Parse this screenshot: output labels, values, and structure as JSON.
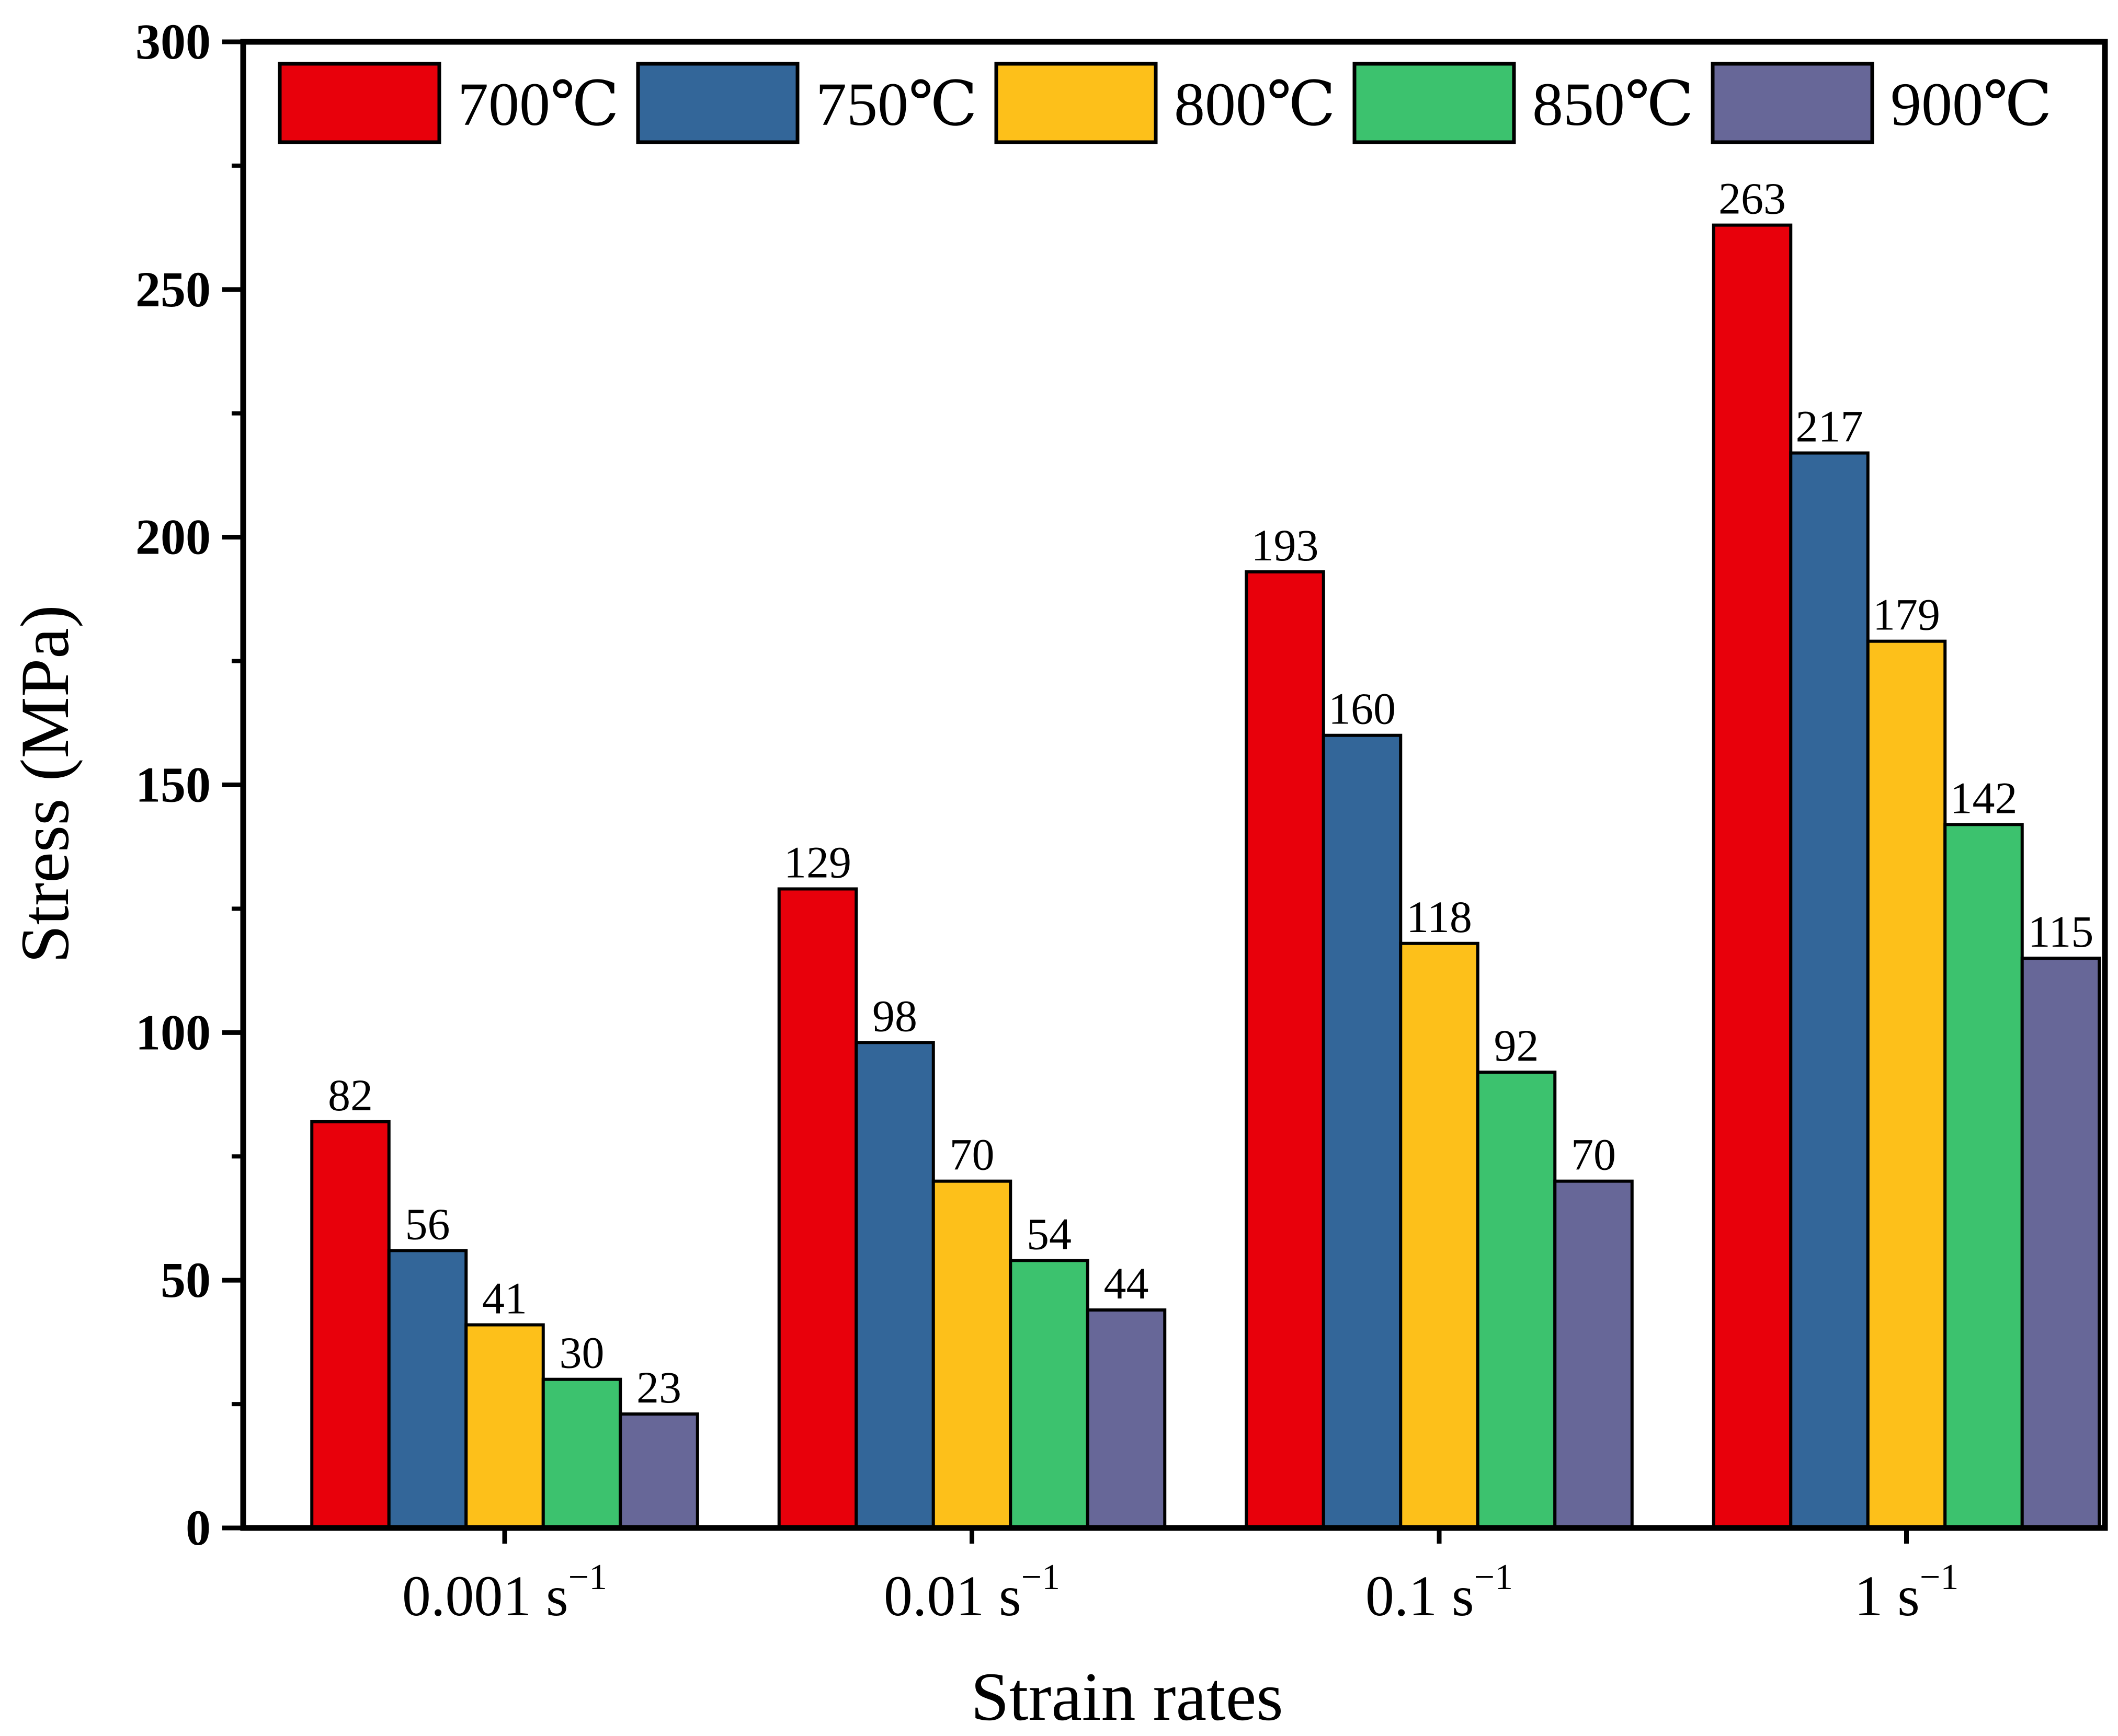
{
  "chart_data": {
    "type": "bar",
    "title": "",
    "xlabel": "Strain rates",
    "ylabel": "Stress (MPa)",
    "ylim": [
      0,
      300
    ],
    "yticks": [
      0,
      50,
      100,
      150,
      200,
      250,
      300
    ],
    "categories": [
      {
        "base": "0.001 s",
        "exp": "−1"
      },
      {
        "base": "0.01 s",
        "exp": "−1"
      },
      {
        "base": "0.1 s",
        "exp": "−1"
      },
      {
        "base": "1 s",
        "exp": "−1"
      }
    ],
    "series": [
      {
        "name": "700℃",
        "color": "#e8000b",
        "values": [
          82,
          129,
          193,
          263
        ]
      },
      {
        "name": "750℃",
        "color": "#336699",
        "values": [
          56,
          98,
          160,
          217
        ]
      },
      {
        "name": "800℃",
        "color": "#fdc01a",
        "values": [
          41,
          70,
          118,
          179
        ]
      },
      {
        "name": "850℃",
        "color": "#3cc26e",
        "values": [
          30,
          54,
          92,
          142
        ]
      },
      {
        "name": "900℃",
        "color": "#676798",
        "values": [
          23,
          44,
          70,
          115
        ]
      }
    ],
    "legend": "top",
    "grid": false
  }
}
